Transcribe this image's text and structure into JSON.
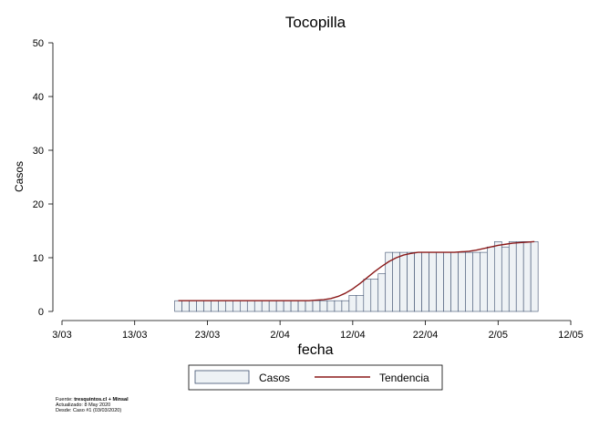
{
  "chart_data": {
    "type": "bar",
    "title": "Tocopilla",
    "xlabel": "fecha",
    "ylabel": "Casos",
    "ylim": [
      0,
      50
    ],
    "yticks": [
      0,
      10,
      20,
      30,
      40,
      50
    ],
    "xlim": [
      "2020-03-03",
      "2020-05-12"
    ],
    "xticks": [
      {
        "date": "2020-03-03",
        "label": "3/03"
      },
      {
        "date": "2020-03-13",
        "label": "13/03"
      },
      {
        "date": "2020-03-23",
        "label": "23/03"
      },
      {
        "date": "2020-04-02",
        "label": "2/04"
      },
      {
        "date": "2020-04-12",
        "label": "12/04"
      },
      {
        "date": "2020-04-22",
        "label": "22/04"
      },
      {
        "date": "2020-05-02",
        "label": "2/05"
      },
      {
        "date": "2020-05-12",
        "label": "12/05"
      }
    ],
    "grid": false,
    "legend_position": "bottom",
    "colors": {
      "bar_fill": "#eef2f5",
      "bar_edge": "#3d4f6e",
      "trend": "#8b1a1a"
    },
    "x": [
      "2020-03-19",
      "2020-03-20",
      "2020-03-21",
      "2020-03-22",
      "2020-03-23",
      "2020-03-24",
      "2020-03-25",
      "2020-03-26",
      "2020-03-27",
      "2020-03-28",
      "2020-03-29",
      "2020-03-30",
      "2020-03-31",
      "2020-04-01",
      "2020-04-02",
      "2020-04-03",
      "2020-04-04",
      "2020-04-05",
      "2020-04-06",
      "2020-04-07",
      "2020-04-08",
      "2020-04-09",
      "2020-04-10",
      "2020-04-11",
      "2020-04-12",
      "2020-04-13",
      "2020-04-14",
      "2020-04-15",
      "2020-04-16",
      "2020-04-17",
      "2020-04-18",
      "2020-04-19",
      "2020-04-20",
      "2020-04-21",
      "2020-04-22",
      "2020-04-23",
      "2020-04-24",
      "2020-04-25",
      "2020-04-26",
      "2020-04-27",
      "2020-04-28",
      "2020-04-29",
      "2020-04-30",
      "2020-05-01",
      "2020-05-02",
      "2020-05-03",
      "2020-05-04",
      "2020-05-05",
      "2020-05-06",
      "2020-05-07"
    ],
    "series": [
      {
        "name": "Casos",
        "type": "bar",
        "values": [
          2,
          2,
          2,
          2,
          2,
          2,
          2,
          2,
          2,
          2,
          2,
          2,
          2,
          2,
          2,
          2,
          2,
          2,
          2,
          2,
          2,
          2,
          2,
          2,
          3,
          3,
          6,
          6,
          7,
          11,
          11,
          11,
          11,
          11,
          11,
          11,
          11,
          11,
          11,
          11,
          11,
          11,
          11,
          12,
          13,
          12,
          13,
          13,
          13,
          13
        ]
      },
      {
        "name": "Tendencia",
        "type": "line",
        "values": [
          2,
          2,
          2,
          2,
          2,
          2,
          2,
          2,
          2,
          2,
          2,
          2,
          2,
          2,
          2,
          2,
          2,
          2,
          2,
          2.1,
          2.2,
          2.4,
          2.8,
          3.4,
          4.2,
          5.2,
          6.3,
          7.4,
          8.4,
          9.3,
          10,
          10.5,
          10.8,
          11,
          11,
          11,
          11,
          11,
          11,
          11.1,
          11.2,
          11.4,
          11.7,
          12,
          12.3,
          12.5,
          12.7,
          12.8,
          12.9,
          13
        ]
      }
    ],
    "legend": [
      {
        "label": "Casos",
        "kind": "bar"
      },
      {
        "label": "Tendencia",
        "kind": "line"
      }
    ]
  },
  "source_note": {
    "line1_prefix": "Fuente: ",
    "line1_bold": "tresquintos.cl + Minsal",
    "line2": "Actualizado: 8 May 2020",
    "line3": "Desde: Caso #1  (03/03/2020)"
  }
}
